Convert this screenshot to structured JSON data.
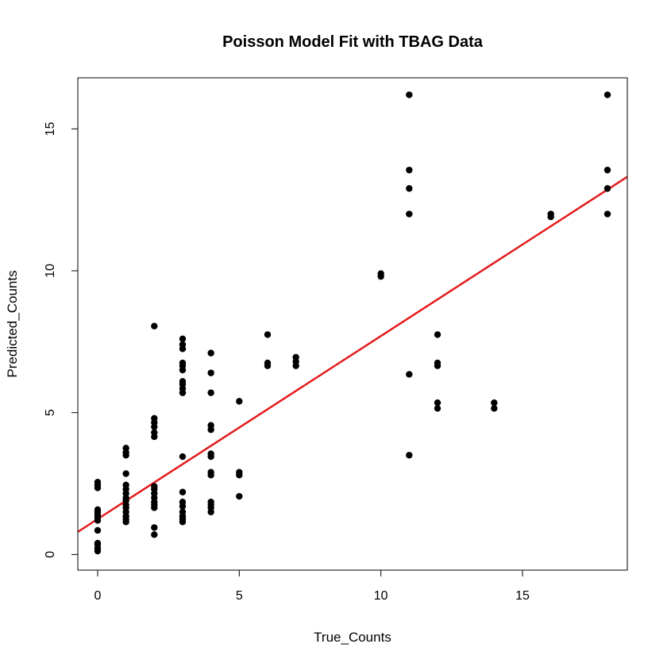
{
  "chart_data": {
    "type": "scatter",
    "title": "Poisson Model Fit with TBAG Data",
    "xlabel": "True_Counts",
    "ylabel": "Predicted_Counts",
    "xlim": [
      -0.7,
      18.7
    ],
    "ylim": [
      -0.55,
      16.8
    ],
    "x_ticks": [
      0,
      5,
      10,
      15
    ],
    "y_ticks": [
      0,
      5,
      10,
      15
    ],
    "grid": false,
    "legend": "none",
    "point_color": "#000000",
    "fit_line": {
      "color": "#e31a1c",
      "intercept": 1.25,
      "slope": 0.645
    },
    "points": [
      [
        0,
        0.12
      ],
      [
        0,
        0.22
      ],
      [
        0,
        0.35
      ],
      [
        0,
        0.4
      ],
      [
        0,
        0.85
      ],
      [
        0,
        1.2
      ],
      [
        0,
        1.3
      ],
      [
        0,
        1.4
      ],
      [
        0,
        1.5
      ],
      [
        0,
        1.58
      ],
      [
        0,
        2.35
      ],
      [
        0,
        2.45
      ],
      [
        0,
        2.55
      ],
      [
        1,
        1.15
      ],
      [
        1,
        1.25
      ],
      [
        1,
        1.35
      ],
      [
        1,
        1.5
      ],
      [
        1,
        1.65
      ],
      [
        1,
        1.75
      ],
      [
        1,
        1.9
      ],
      [
        1,
        2.0
      ],
      [
        1,
        2.15
      ],
      [
        1,
        2.3
      ],
      [
        1,
        2.45
      ],
      [
        1,
        2.85
      ],
      [
        1,
        3.5
      ],
      [
        1,
        3.6
      ],
      [
        1,
        3.75
      ],
      [
        2,
        0.7
      ],
      [
        2,
        0.95
      ],
      [
        2,
        1.65
      ],
      [
        2,
        1.75
      ],
      [
        2,
        1.85
      ],
      [
        2,
        2.0
      ],
      [
        2,
        2.15
      ],
      [
        2,
        2.3
      ],
      [
        2,
        2.4
      ],
      [
        2,
        4.15
      ],
      [
        2,
        4.3
      ],
      [
        2,
        4.5
      ],
      [
        2,
        4.65
      ],
      [
        2,
        4.8
      ],
      [
        2,
        8.05
      ],
      [
        3,
        1.15
      ],
      [
        3,
        1.25
      ],
      [
        3,
        1.35
      ],
      [
        3,
        1.5
      ],
      [
        3,
        1.7
      ],
      [
        3,
        1.85
      ],
      [
        3,
        2.2
      ],
      [
        3,
        3.45
      ],
      [
        3,
        5.7
      ],
      [
        3,
        5.85
      ],
      [
        3,
        6.0
      ],
      [
        3,
        6.1
      ],
      [
        3,
        6.5
      ],
      [
        3,
        6.65
      ],
      [
        3,
        6.75
      ],
      [
        3,
        7.25
      ],
      [
        3,
        7.4
      ],
      [
        3,
        7.6
      ],
      [
        4,
        1.5
      ],
      [
        4,
        1.65
      ],
      [
        4,
        1.75
      ],
      [
        4,
        1.85
      ],
      [
        4,
        2.8
      ],
      [
        4,
        2.9
      ],
      [
        4,
        3.45
      ],
      [
        4,
        3.55
      ],
      [
        4,
        4.4
      ],
      [
        4,
        4.55
      ],
      [
        4,
        5.7
      ],
      [
        4,
        6.4
      ],
      [
        4,
        7.1
      ],
      [
        5,
        2.05
      ],
      [
        5,
        2.8
      ],
      [
        5,
        2.9
      ],
      [
        5,
        5.4
      ],
      [
        6,
        6.65
      ],
      [
        6,
        6.75
      ],
      [
        6,
        7.75
      ],
      [
        7,
        6.65
      ],
      [
        7,
        6.8
      ],
      [
        7,
        6.95
      ],
      [
        10,
        9.8
      ],
      [
        10,
        9.9
      ],
      [
        11,
        3.5
      ],
      [
        11,
        6.35
      ],
      [
        11,
        12.0
      ],
      [
        11,
        12.9
      ],
      [
        11,
        13.55
      ],
      [
        11,
        16.2
      ],
      [
        12,
        5.15
      ],
      [
        12,
        5.35
      ],
      [
        12,
        6.65
      ],
      [
        12,
        6.75
      ],
      [
        12,
        7.75
      ],
      [
        14,
        5.15
      ],
      [
        14,
        5.35
      ],
      [
        16,
        11.9
      ],
      [
        16,
        12.0
      ],
      [
        18,
        12.0
      ],
      [
        18,
        12.9
      ],
      [
        18,
        13.55
      ],
      [
        18,
        16.2
      ]
    ]
  }
}
